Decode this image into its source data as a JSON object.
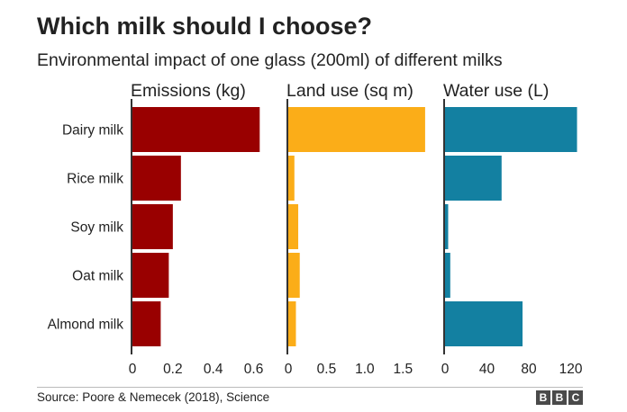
{
  "title": "Which milk should I choose?",
  "subtitle": "Environmental impact of one glass (200ml) of different milks",
  "source": "Source: Poore & Nemecek (2018), Science",
  "logo": [
    "B",
    "B",
    "C"
  ],
  "chart_data": {
    "type": "bar",
    "orientation": "horizontal",
    "categories": [
      "Dairy milk",
      "Rice milk",
      "Soy milk",
      "Oat milk",
      "Almond milk"
    ],
    "panels": [
      {
        "name": "Emissions (kg)",
        "color": "#990000",
        "xlim": [
          0,
          0.7
        ],
        "ticks": [
          0,
          0.2,
          0.4,
          0.6
        ],
        "tick_labels": [
          "0",
          "0.2",
          "0.4",
          "0.6"
        ],
        "values": [
          0.63,
          0.24,
          0.2,
          0.18,
          0.14
        ]
      },
      {
        "name": "Land use (sq m)",
        "color": "#fbad18",
        "xlim": [
          0,
          1.85
        ],
        "ticks": [
          0,
          0.5,
          1.0,
          1.5
        ],
        "tick_labels": [
          "0",
          "0.5",
          "1.0",
          "1.5"
        ],
        "values": [
          1.79,
          0.08,
          0.13,
          0.15,
          0.1
        ]
      },
      {
        "name": "Water use (L)",
        "color": "#1380a1",
        "xlim": [
          0,
          135
        ],
        "ticks": [
          0,
          40,
          80,
          120
        ],
        "tick_labels": [
          "0",
          "40",
          "80",
          "120"
        ],
        "values": [
          126,
          54,
          3,
          5,
          74
        ]
      }
    ]
  }
}
